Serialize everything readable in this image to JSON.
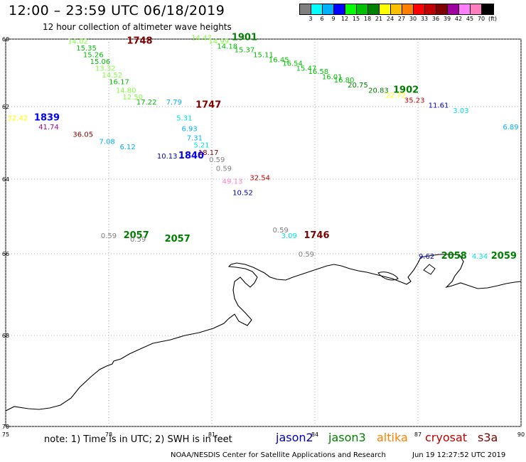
{
  "header": {
    "title": "12:00 – 23:59 UTC 06/18/2019",
    "subtitle": "12 hour collection of altimeter wave heights"
  },
  "colorbar": {
    "colors": [
      "#808080",
      "#00ffff",
      "#00b0ff",
      "#0000ff",
      "#00ff00",
      "#00c000",
      "#008000",
      "#ffff00",
      "#ffc000",
      "#ff8000",
      "#ff0000",
      "#c00000",
      "#800000",
      "#a000a0",
      "#ff80ff",
      "#ff80c0",
      "#000000"
    ],
    "labels": [
      "3",
      "6",
      "9",
      "12",
      "15",
      "18",
      "21",
      "24",
      "27",
      "30",
      "33",
      "36",
      "39",
      "42",
      "45",
      "70",
      "(ft)"
    ]
  },
  "axes": {
    "lon_ticks": [
      "75",
      "78",
      "81",
      "84",
      "87",
      "90"
    ],
    "lat_ticks": [
      "60",
      "62",
      "64",
      "66",
      "68",
      "70"
    ]
  },
  "labels": [
    {
      "t": "14.02",
      "lon": 77.1,
      "lat": 60.05,
      "c": "#80ff40"
    },
    {
      "t": "1748",
      "lon": 78.9,
      "lat": 60.05,
      "c": "#800000",
      "big": true
    },
    {
      "t": "15.35",
      "lon": 77.35,
      "lat": 60.25,
      "c": "#00c000"
    },
    {
      "t": "15.26",
      "lon": 77.55,
      "lat": 60.45,
      "c": "#00c000"
    },
    {
      "t": "15.06",
      "lon": 77.75,
      "lat": 60.65,
      "c": "#00c000"
    },
    {
      "t": "13.32",
      "lon": 77.9,
      "lat": 60.85,
      "c": "#80ff40"
    },
    {
      "t": "14.52",
      "lon": 78.1,
      "lat": 61.05,
      "c": "#80ff40"
    },
    {
      "t": "16.17",
      "lon": 78.3,
      "lat": 61.25,
      "c": "#00c000"
    },
    {
      "t": "14.80",
      "lon": 78.5,
      "lat": 61.5,
      "c": "#80ff40"
    },
    {
      "t": "12.50",
      "lon": 78.7,
      "lat": 61.7,
      "c": "#80ff40"
    },
    {
      "t": "17.22",
      "lon": 79.1,
      "lat": 61.85,
      "c": "#00c000"
    },
    {
      "t": "1747",
      "lon": 80.9,
      "lat": 61.95,
      "c": "#800000",
      "big": true
    },
    {
      "t": "14.47",
      "lon": 80.7,
      "lat": 59.95,
      "c": "#80ff40"
    },
    {
      "t": "1901",
      "lon": 81.95,
      "lat": 59.95,
      "c": "#008000",
      "big": true
    },
    {
      "t": "14.99",
      "lon": 81.2,
      "lat": 60.05,
      "c": "#80ff40"
    },
    {
      "t": "14.18",
      "lon": 81.45,
      "lat": 60.2,
      "c": "#00c000"
    },
    {
      "t": "15.37",
      "lon": 81.95,
      "lat": 60.3,
      "c": "#00c000"
    },
    {
      "t": "15.11",
      "lon": 82.5,
      "lat": 60.45,
      "c": "#00c000"
    },
    {
      "t": "16.45",
      "lon": 82.95,
      "lat": 60.6,
      "c": "#00c000"
    },
    {
      "t": "16.54",
      "lon": 83.35,
      "lat": 60.7,
      "c": "#00c000"
    },
    {
      "t": "15.47",
      "lon": 83.75,
      "lat": 60.85,
      "c": "#00c000"
    },
    {
      "t": "16.58",
      "lon": 84.1,
      "lat": 60.95,
      "c": "#00c000"
    },
    {
      "t": "16.01",
      "lon": 84.5,
      "lat": 61.1,
      "c": "#00c000"
    },
    {
      "t": "16.80",
      "lon": 84.85,
      "lat": 61.2,
      "c": "#00c000"
    },
    {
      "t": "20.75",
      "lon": 85.25,
      "lat": 61.35,
      "c": "#008000"
    },
    {
      "t": "20.83",
      "lon": 85.85,
      "lat": 61.5,
      "c": "#008000"
    },
    {
      "t": "1902",
      "lon": 86.65,
      "lat": 61.5,
      "c": "#008000",
      "big": true
    },
    {
      "t": "22.72",
      "lon": 86.35,
      "lat": 61.65,
      "c": "#ffff00"
    },
    {
      "t": "35.23",
      "lon": 86.9,
      "lat": 61.8,
      "c": "#c00000"
    },
    {
      "t": "11.61",
      "lon": 87.6,
      "lat": 61.95,
      "c": "#0000c0"
    },
    {
      "t": "3.03",
      "lon": 88.25,
      "lat": 62.1,
      "c": "#00e0e0"
    },
    {
      "t": "6.89",
      "lon": 89.7,
      "lat": 62.55,
      "c": "#00b0ff"
    },
    {
      "t": "22.42",
      "lon": 75.35,
      "lat": 62.3,
      "c": "#ffff00"
    },
    {
      "t": "1839",
      "lon": 76.2,
      "lat": 62.3,
      "c": "#0000ff",
      "big": true
    },
    {
      "t": "41.74",
      "lon": 76.25,
      "lat": 62.55,
      "c": "#a000a0"
    },
    {
      "t": "36.05",
      "lon": 77.25,
      "lat": 62.75,
      "c": "#800000"
    },
    {
      "t": "7.08",
      "lon": 77.95,
      "lat": 62.95,
      "c": "#00b0ff"
    },
    {
      "t": "6.12",
      "lon": 78.55,
      "lat": 63.1,
      "c": "#00b0ff"
    },
    {
      "t": "7.79",
      "lon": 79.9,
      "lat": 61.85,
      "c": "#00b0ff"
    },
    {
      "t": "5.31",
      "lon": 80.2,
      "lat": 62.3,
      "c": "#00e0e0"
    },
    {
      "t": "6.93",
      "lon": 80.35,
      "lat": 62.6,
      "c": "#00b0ff"
    },
    {
      "t": "7.31",
      "lon": 80.5,
      "lat": 62.85,
      "c": "#00b0ff"
    },
    {
      "t": "5.21",
      "lon": 80.7,
      "lat": 63.05,
      "c": "#00e0e0"
    },
    {
      "t": "10.13",
      "lon": 79.7,
      "lat": 63.35,
      "c": "#0000c0"
    },
    {
      "t": "1840",
      "lon": 80.4,
      "lat": 63.35,
      "c": "#0000ff",
      "big": true
    },
    {
      "t": "18.17",
      "lon": 80.9,
      "lat": 63.25,
      "c": "#800000"
    },
    {
      "t": "0.59",
      "lon": 81.15,
      "lat": 63.45,
      "c": "#808080"
    },
    {
      "t": "0.59",
      "lon": 81.35,
      "lat": 63.7,
      "c": "#808080"
    },
    {
      "t": "49.13",
      "lon": 81.6,
      "lat": 64.05,
      "c": "#ff80c0"
    },
    {
      "t": "32.54",
      "lon": 82.4,
      "lat": 63.95,
      "c": "#c00000"
    },
    {
      "t": "10.52",
      "lon": 81.9,
      "lat": 64.35,
      "c": "#0000c0"
    },
    {
      "t": "0.59",
      "lon": 83.0,
      "lat": 65.35,
      "c": "#808080"
    },
    {
      "t": "3.09",
      "lon": 83.25,
      "lat": 65.5,
      "c": "#00e0e0"
    },
    {
      "t": "1746",
      "lon": 84.05,
      "lat": 65.5,
      "c": "#800000",
      "big": true
    },
    {
      "t": "0.59",
      "lon": 83.75,
      "lat": 66.0,
      "c": "#808080"
    },
    {
      "t": "0.59",
      "lon": 78.0,
      "lat": 65.5,
      "c": "#808080"
    },
    {
      "t": "2057",
      "lon": 78.8,
      "lat": 65.5,
      "c": "#008000",
      "big": true
    },
    {
      "t": "0.59",
      "lon": 78.85,
      "lat": 65.6,
      "c": "#808080"
    },
    {
      "t": "2057",
      "lon": 80.0,
      "lat": 65.6,
      "c": "#008000",
      "big": true
    },
    {
      "t": "9.62",
      "lon": 87.25,
      "lat": 66.05,
      "c": "#0000c0"
    },
    {
      "t": "2058",
      "lon": 88.05,
      "lat": 66.05,
      "c": "#008000",
      "big": true
    },
    {
      "t": "4.34",
      "lon": 88.8,
      "lat": 66.05,
      "c": "#00e0e0"
    },
    {
      "t": "2059",
      "lon": 89.5,
      "lat": 66.05,
      "c": "#008000",
      "big": true
    }
  ],
  "note": "note: 1) Time is in UTC; 2) SWH is in feet",
  "satellites": [
    {
      "name": "jason2",
      "color": "#0000c0"
    },
    {
      "name": "jason3",
      "color": "#008000"
    },
    {
      "name": "altika",
      "color": "#ff8000"
    },
    {
      "name": "cryosat",
      "color": "#c00000"
    },
    {
      "name": "s3a",
      "color": "#800000"
    }
  ],
  "footer": {
    "credit": "NOAA/NESDIS Center for Satellite Applications and Research",
    "timestamp": "Jun 19 12:27:52 UTC 2019"
  }
}
